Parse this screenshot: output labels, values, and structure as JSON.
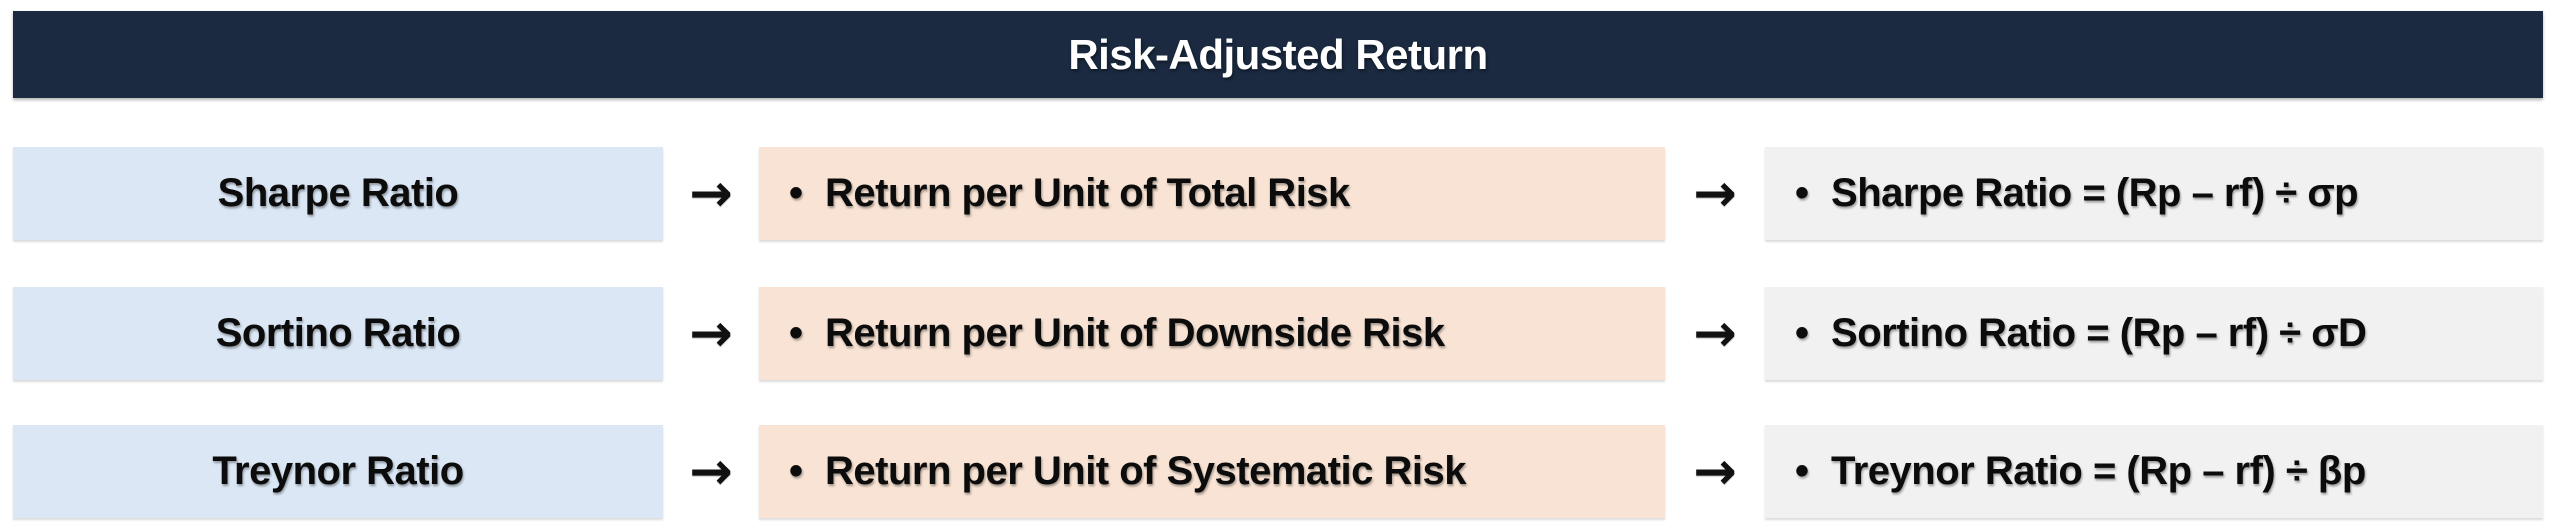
{
  "title": "Risk-Adjusted Return",
  "ui": {
    "arrow": "→",
    "bullet": "•"
  },
  "rows": [
    {
      "label": "Sharpe Ratio",
      "description": "Return per Unit of Total Risk",
      "formula": "Sharpe Ratio = (Rp – rf) ÷ σp"
    },
    {
      "label": "Sortino Ratio",
      "description": "Return per Unit of Downside Risk",
      "formula": "Sortino Ratio = (Rp – rf) ÷ σD"
    },
    {
      "label": "Treynor Ratio",
      "description": "Return per Unit of Systematic Risk",
      "formula": "Treynor Ratio = (Rp – rf) ÷ βp"
    }
  ],
  "colors": {
    "header_bg": "#1b2a41",
    "header_text": "#ffffff",
    "label_bg": "#dbe7f5",
    "description_bg": "#f8e3d4",
    "formula_bg": "#f1f1f1",
    "text": "#0c0c0c"
  }
}
